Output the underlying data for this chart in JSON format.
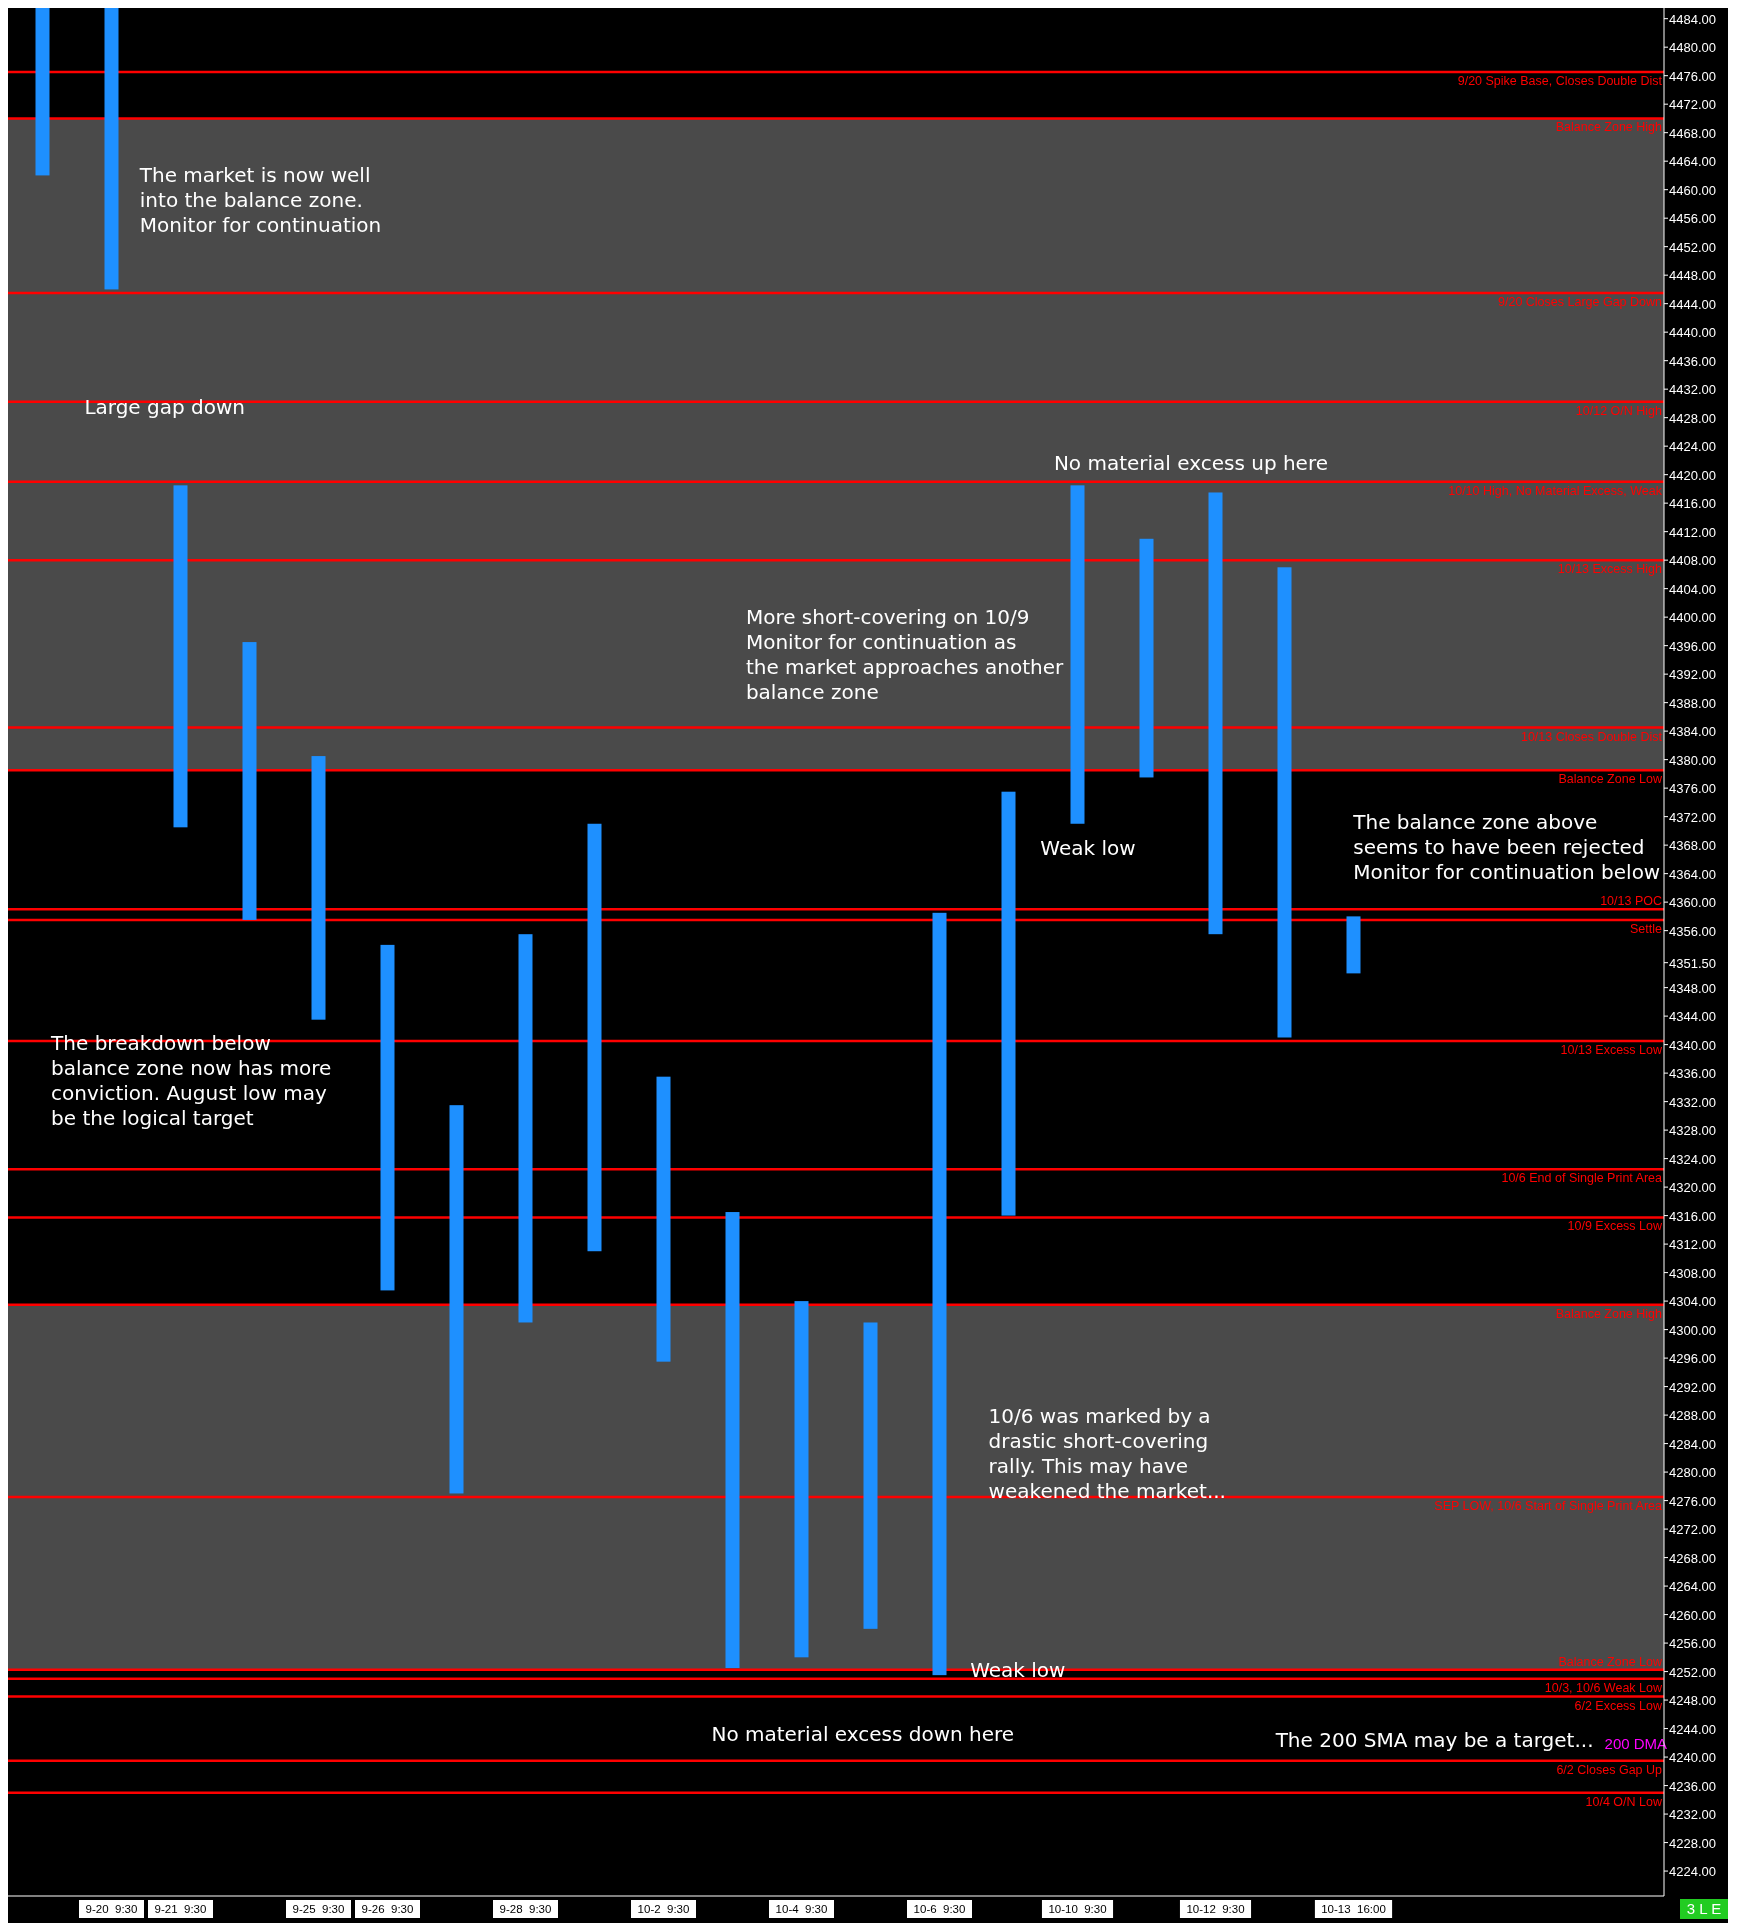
{
  "chart_data": {
    "type": "bar",
    "categories": [
      null,
      "9-20  9:30",
      "9-21  9:30",
      null,
      "9-25  9:30",
      "9-26  9:30",
      null,
      "9-28  9:30",
      null,
      "10-2  9:30",
      null,
      "10-4  9:30",
      null,
      "10-6  9:30",
      null,
      "10-10  9:30",
      null,
      "10-12  9:30",
      null,
      "10-13  16:00",
      null,
      null,
      null,
      null
    ],
    "series": [
      {
        "color": "#1e90ff",
        "base": [
          4462,
          4446,
          4370.5,
          4357.5,
          4343.5,
          4305.5,
          4277,
          4301,
          4311,
          4295.5,
          4252.5,
          4254,
          4258,
          4251.5,
          4316,
          4371,
          4377.5,
          4355.5,
          4341,
          4350,
          null,
          null,
          null,
          null
        ],
        "values": [
          23.5,
          39.5,
          48,
          39,
          37,
          48.5,
          54.5,
          54.5,
          60,
          40,
          64,
          50,
          43,
          107,
          59.5,
          47.5,
          33.5,
          62,
          66,
          8,
          null,
          null,
          null,
          null
        ]
      }
    ],
    "ylim": [
      4220.5,
      4485.5
    ],
    "yticks": [
      {
        "value": 4224,
        "label": "4224.00"
      },
      {
        "value": 4228,
        "label": "4228.00"
      },
      {
        "value": 4232,
        "label": "4232.00"
      },
      {
        "value": 4236,
        "label": "4236.00"
      },
      {
        "value": 4240,
        "label": "4240.00"
      },
      {
        "value": 4244,
        "label": "4244.00"
      },
      {
        "value": 4248,
        "label": "4248.00"
      },
      {
        "value": 4252,
        "label": "4252.00"
      },
      {
        "value": 4256,
        "label": "4256.00"
      },
      {
        "value": 4260,
        "label": "4260.00"
      },
      {
        "value": 4264,
        "label": "4264.00"
      },
      {
        "value": 4268,
        "label": "4268.00"
      },
      {
        "value": 4272,
        "label": "4272.00"
      },
      {
        "value": 4276,
        "label": "4276.00"
      },
      {
        "value": 4280,
        "label": "4280.00"
      },
      {
        "value": 4284,
        "label": "4284.00"
      },
      {
        "value": 4288,
        "label": "4288.00"
      },
      {
        "value": 4292,
        "label": "4292.00"
      },
      {
        "value": 4296,
        "label": "4296.00"
      },
      {
        "value": 4300,
        "label": "4300.00"
      },
      {
        "value": 4304,
        "label": "4304.00"
      },
      {
        "value": 4308,
        "label": "4308.00"
      },
      {
        "value": 4312,
        "label": "4312.00"
      },
      {
        "value": 4316,
        "label": "4316.00"
      },
      {
        "value": 4320,
        "label": "4320.00"
      },
      {
        "value": 4324,
        "label": "4324.00"
      },
      {
        "value": 4328,
        "label": "4328.00"
      },
      {
        "value": 4332,
        "label": "4332.00"
      },
      {
        "value": 4336,
        "label": "4336.00"
      },
      {
        "value": 4340,
        "label": "4340.00"
      },
      {
        "value": 4344,
        "label": "4344.00"
      },
      {
        "value": 4348,
        "label": "4348.00"
      },
      {
        "value": 4351.5,
        "label": "4351.50"
      },
      {
        "value": 4356,
        "label": "4356.00"
      },
      {
        "value": 4360,
        "label": "4360.00"
      },
      {
        "value": 4364,
        "label": "4364.00"
      },
      {
        "value": 4368,
        "label": "4368.00"
      },
      {
        "value": 4372,
        "label": "4372.00"
      },
      {
        "value": 4376,
        "label": "4376.00"
      },
      {
        "value": 4380,
        "label": "4380.00"
      },
      {
        "value": 4384,
        "label": "4384.00"
      },
      {
        "value": 4388,
        "label": "4388.00"
      },
      {
        "value": 4392,
        "label": "4392.00"
      },
      {
        "value": 4396,
        "label": "4396.00"
      },
      {
        "value": 4400,
        "label": "4400.00"
      },
      {
        "value": 4404,
        "label": "4404.00"
      },
      {
        "value": 4408,
        "label": "4408.00"
      },
      {
        "value": 4412,
        "label": "4412.00"
      },
      {
        "value": 4416,
        "label": "4416.00"
      },
      {
        "value": 4420,
        "label": "4420.00"
      },
      {
        "value": 4424,
        "label": "4424.00"
      },
      {
        "value": 4428,
        "label": "4428.00"
      },
      {
        "value": 4432,
        "label": "4432.00"
      },
      {
        "value": 4436,
        "label": "4436.00"
      },
      {
        "value": 4440,
        "label": "4440.00"
      },
      {
        "value": 4444,
        "label": "4444.00"
      },
      {
        "value": 4448,
        "label": "4448.00"
      },
      {
        "value": 4452,
        "label": "4452.00"
      },
      {
        "value": 4456,
        "label": "4456.00"
      },
      {
        "value": 4460,
        "label": "4460.00"
      },
      {
        "value": 4464,
        "label": "4464.00"
      },
      {
        "value": 4468,
        "label": "4468.00"
      },
      {
        "value": 4472,
        "label": "4472.00"
      },
      {
        "value": 4476,
        "label": "4476.00"
      },
      {
        "value": 4480,
        "label": "4480.00"
      },
      {
        "value": 4484,
        "label": "4484.00"
      }
    ],
    "bands": [
      {
        "axis": "y",
        "from": 4378.5,
        "to": 4470,
        "color": "#4a4a4a"
      },
      {
        "axis": "y",
        "from": 4252.25,
        "to": 4303.5,
        "color": "#4a4a4a"
      }
    ],
    "ref_lines": [
      {
        "axis": "y",
        "value": 4476.5,
        "label": "9/20 Spike Base, Closes Double Dist",
        "color": "#ff0000"
      },
      {
        "axis": "y",
        "value": 4470,
        "label": "Balance Zone High",
        "color": "#ff0000"
      },
      {
        "axis": "y",
        "value": 4445.5,
        "label": "9/20 Closes Large Gap Down",
        "color": "#ff0000"
      },
      {
        "axis": "y",
        "value": 4430.25,
        "label": "10/12 O/N High",
        "color": "#ff0000"
      },
      {
        "axis": "y",
        "value": 4419,
        "label": "10/10 High, No Material Excess, Weak",
        "color": "#ff0000"
      },
      {
        "axis": "y",
        "value": 4408,
        "label": "10/13 Excess High",
        "color": "#ff0000"
      },
      {
        "axis": "y",
        "value": 4384.5,
        "label": "10/13 Closes Double Dist",
        "color": "#ff0000"
      },
      {
        "axis": "y",
        "value": 4378.5,
        "label": "Balance Zone Low",
        "color": "#ff0000"
      },
      {
        "axis": "y",
        "value": 4359,
        "label": "10/13 POC",
        "color": "#ff0000"
      },
      {
        "axis": "y",
        "value": 4357.5,
        "label": "Settle",
        "color": "#ff0000"
      },
      {
        "axis": "y",
        "value": 4340.5,
        "label": "10/13 Excess Low",
        "color": "#ff0000"
      },
      {
        "axis": "y",
        "value": 4322.5,
        "label": "10/6 End of Single Print Area",
        "color": "#ff0000"
      },
      {
        "axis": "y",
        "value": 4315.75,
        "label": "10/9 Excess Low",
        "color": "#ff0000"
      },
      {
        "axis": "y",
        "value": 4303.5,
        "label": "Balance Zone High",
        "color": "#ff0000"
      },
      {
        "axis": "y",
        "value": 4276.5,
        "label": "SEP LOW, 10/6 Start of Single Print Area",
        "color": "#ff0000"
      },
      {
        "axis": "y",
        "value": 4252.25,
        "label": "Balance Zone Low",
        "color": "#ff0000"
      },
      {
        "axis": "y",
        "value": 4251,
        "label": "10/3, 10/6 Weak Low",
        "color": "#ff0000"
      },
      {
        "axis": "y",
        "value": 4248.5,
        "label": "6/2 Excess Low",
        "color": "#ff0000"
      },
      {
        "axis": "y",
        "value": 4239.5,
        "label": "6/2 Closes Gap Up",
        "color": "#ff0000"
      },
      {
        "axis": "y",
        "value": 4235,
        "label": "10/4 O/N Low",
        "color": "#ff0000"
      }
    ],
    "annotations": [
      "The market is now well\ninto the balance zone.\nMonitor for continuation",
      "Large gap down",
      "No material excess up here",
      "More short-covering on 10/9\nMonitor for continuation as\nthe market approaches another\nbalance zone",
      "Weak low",
      "The balance zone above\nseems to have been rejected\nMonitor for continuation below",
      "The breakdown below\nbalance zone now has more\nconviction. August low may\nbe the logical target",
      "10/6 was marked by a\ndrastic short-covering\nrally. This may have\nweakened the market...",
      "Weak low",
      "No material excess down here",
      "The 200 SMA may be a target...",
      "200 DMA",
      "3 L E"
    ]
  }
}
